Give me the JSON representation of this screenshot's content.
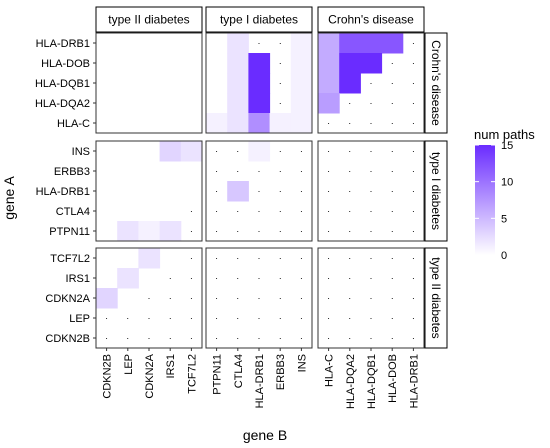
{
  "chart_data": {
    "type": "heatmap",
    "xlabel": "gene B",
    "ylabel": "gene A",
    "legend": {
      "title": "num paths",
      "ticks": [
        0,
        5,
        10,
        15
      ],
      "range": [
        0,
        15
      ],
      "color_low": "#ffffff",
      "color_high": "#6a2cff",
      "placement": "right"
    },
    "empty_marker": "·",
    "column_facets": [
      {
        "name": "type II diabetes",
        "genes": [
          "CDKN2B",
          "LEP",
          "CDKN2A",
          "IRS1",
          "TCF7L2"
        ]
      },
      {
        "name": "type I diabetes",
        "genes": [
          "PTPN11",
          "CTLA4",
          "HLA-DRB1",
          "ERBB3",
          "INS"
        ]
      },
      {
        "name": "Crohn's disease",
        "genes": [
          "HLA-C",
          "HLA-DQA2",
          "HLA-DQB1",
          "HLA-DOB",
          "HLA-DRB1"
        ]
      }
    ],
    "row_facets": [
      {
        "name": "Crohn's disease",
        "genes": [
          "HLA-DRB1",
          "HLA-DOB",
          "HLA-DQB1",
          "HLA-DQA2",
          "HLA-C"
        ]
      },
      {
        "name": "type I diabetes",
        "genes": [
          "INS",
          "ERBB3",
          "HLA-DRB1",
          "CTLA4",
          "PTPN11"
        ]
      },
      {
        "name": "type II diabetes",
        "genes": [
          "TCF7L2",
          "IRS1",
          "CDKN2A",
          "LEP",
          "CDKN2B"
        ]
      }
    ],
    "cells": [
      {
        "row_facet": 0,
        "col_facet": 0,
        "values": [
          [
            0,
            0,
            0,
            0,
            0
          ],
          [
            0,
            0,
            0,
            0,
            0
          ],
          [
            0,
            0,
            0,
            0,
            0
          ],
          [
            0,
            0,
            0,
            0,
            0
          ],
          [
            0,
            0,
            0,
            0,
            0
          ]
        ]
      },
      {
        "row_facet": 0,
        "col_facet": 1,
        "values": [
          [
            0,
            2,
            null,
            null,
            1
          ],
          [
            0,
            2,
            15,
            null,
            1
          ],
          [
            0,
            2,
            15,
            null,
            1
          ],
          [
            0,
            2,
            15,
            null,
            1
          ],
          [
            1,
            2,
            8,
            1,
            1
          ]
        ]
      },
      {
        "row_facet": 0,
        "col_facet": 2,
        "values": [
          [
            6,
            12,
            12,
            12,
            null
          ],
          [
            6,
            15,
            15,
            null,
            null
          ],
          [
            6,
            15,
            null,
            null,
            null
          ],
          [
            7,
            null,
            null,
            null,
            null
          ],
          [
            null,
            null,
            null,
            null,
            null
          ]
        ]
      },
      {
        "row_facet": 1,
        "col_facet": 0,
        "values": [
          [
            0,
            0,
            0,
            3,
            2
          ],
          [
            0,
            0,
            0,
            0,
            0
          ],
          [
            0,
            0,
            0,
            0,
            0
          ],
          [
            0,
            0,
            0,
            0,
            null
          ],
          [
            0,
            2,
            1,
            2,
            null
          ]
        ]
      },
      {
        "row_facet": 1,
        "col_facet": 1,
        "values": [
          [
            null,
            null,
            1,
            null,
            null
          ],
          [
            null,
            null,
            null,
            null,
            null
          ],
          [
            null,
            4,
            null,
            null,
            null
          ],
          [
            null,
            null,
            null,
            null,
            null
          ],
          [
            null,
            null,
            null,
            null,
            null
          ]
        ]
      },
      {
        "row_facet": 1,
        "col_facet": 2,
        "values": [
          [
            null,
            null,
            null,
            null,
            null
          ],
          [
            null,
            null,
            null,
            null,
            null
          ],
          [
            null,
            null,
            null,
            null,
            null
          ],
          [
            null,
            null,
            null,
            null,
            null
          ],
          [
            null,
            null,
            null,
            null,
            null
          ]
        ]
      },
      {
        "row_facet": 2,
        "col_facet": 0,
        "values": [
          [
            0,
            0,
            2,
            0,
            null
          ],
          [
            0,
            2,
            0,
            null,
            null
          ],
          [
            3,
            0,
            null,
            null,
            null
          ],
          [
            null,
            null,
            null,
            null,
            null
          ],
          [
            null,
            null,
            null,
            null,
            null
          ]
        ]
      },
      {
        "row_facet": 2,
        "col_facet": 1,
        "values": [
          [
            null,
            null,
            null,
            null,
            null
          ],
          [
            null,
            null,
            null,
            null,
            null
          ],
          [
            null,
            null,
            null,
            null,
            null
          ],
          [
            null,
            null,
            null,
            null,
            null
          ],
          [
            null,
            null,
            null,
            null,
            null
          ]
        ]
      },
      {
        "row_facet": 2,
        "col_facet": 2,
        "values": [
          [
            null,
            null,
            null,
            null,
            null
          ],
          [
            null,
            null,
            null,
            null,
            null
          ],
          [
            null,
            null,
            null,
            null,
            null
          ],
          [
            null,
            null,
            null,
            null,
            null
          ],
          [
            null,
            null,
            null,
            null,
            null
          ]
        ]
      }
    ]
  }
}
